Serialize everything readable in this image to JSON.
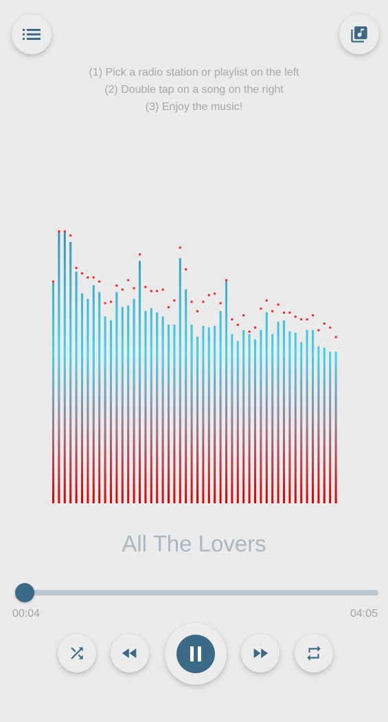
{
  "header": {
    "playlist_icon": "list-icon",
    "library_icon": "music-library-icon",
    "icon_color": "#3a6a86"
  },
  "instructions": [
    "(1) Pick a radio station or playlist on the left",
    "(2) Double tap on a song on the right",
    "(3) Enjoy the music!"
  ],
  "visualizer": {
    "levels": [
      0.815,
      1.0,
      1.0,
      0.965,
      0.855,
      0.775,
      0.755,
      0.805,
      0.78,
      0.69,
      0.675,
      0.78,
      0.725,
      0.73,
      0.755,
      0.895,
      0.71,
      0.72,
      0.705,
      0.69,
      0.66,
      0.66,
      0.905,
      0.79,
      0.66,
      0.615,
      0.655,
      0.65,
      0.655,
      0.71,
      0.82,
      0.625,
      0.6,
      0.64,
      0.625,
      0.605,
      0.64,
      0.705,
      0.625,
      0.67,
      0.675,
      0.635,
      0.63,
      0.595,
      0.64,
      0.64,
      0.58,
      0.575,
      0.56,
      0.56
    ],
    "peaks": [
      0.815,
      1.0,
      1.0,
      0.985,
      0.865,
      0.845,
      0.83,
      0.83,
      0.815,
      0.735,
      0.74,
      0.8,
      0.785,
      0.82,
      0.79,
      0.915,
      0.795,
      0.78,
      0.78,
      0.785,
      0.72,
      0.745,
      0.94,
      0.86,
      0.74,
      0.705,
      0.74,
      0.765,
      0.77,
      0.735,
      0.82,
      0.675,
      0.655,
      0.69,
      0.63,
      0.645,
      0.715,
      0.745,
      0.705,
      0.73,
      0.7,
      0.7,
      0.685,
      0.675,
      0.675,
      0.69,
      0.635,
      0.66,
      0.645,
      0.61
    ],
    "colors": {
      "top": "#3a93b8",
      "middle": "#3fd3ee",
      "bottom": "#e00000",
      "peak": "#ff2020"
    }
  },
  "song": {
    "title": "All The Lovers"
  },
  "progress": {
    "current_time": "00:04",
    "total_time": "04:05",
    "fraction": 0.016
  },
  "controls": {
    "shuffle_icon": "shuffle-icon",
    "prev_icon": "rewind-icon",
    "play_icon": "pause-icon",
    "next_icon": "fast-forward-icon",
    "repeat_icon": "repeat-icon",
    "accent": "#3a6a86"
  }
}
